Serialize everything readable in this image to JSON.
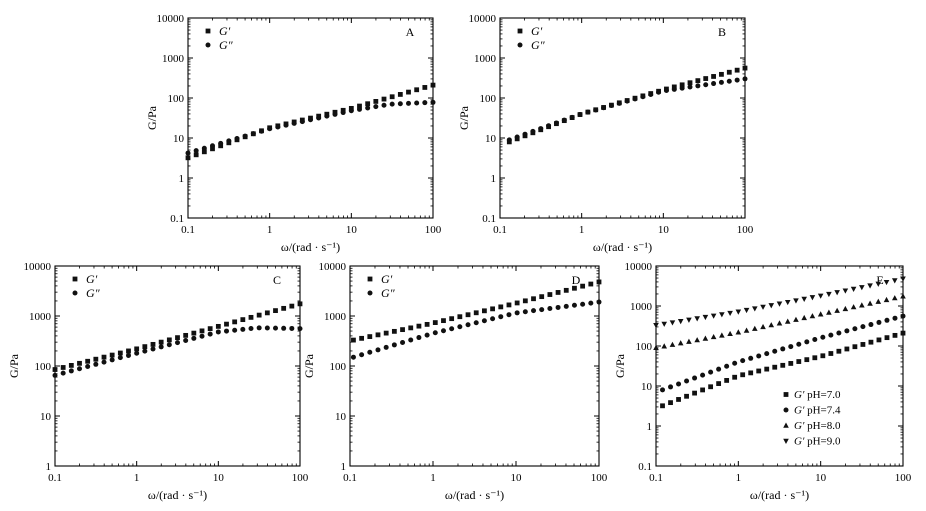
{
  "chart_data": [
    {
      "panel": "A",
      "type": "scatter",
      "xscale": "log",
      "yscale": "log",
      "xlim": [
        0.1,
        100
      ],
      "ylim": [
        0.1,
        10000
      ],
      "x_ticks": [
        "0.1",
        "1",
        "10",
        "100"
      ],
      "y_ticks": [
        "0.1",
        "1",
        "10",
        "100",
        "1000",
        "10000"
      ],
      "xlabel": "ω/(rad · s⁻¹)",
      "ylabel": "G/Pa",
      "series": [
        {
          "name": "G′",
          "marker": "square",
          "curve": [
            [
              0.1,
              3.2
            ],
            [
              1,
              18
            ],
            [
              10,
              55
            ],
            [
              100,
              210
            ]
          ]
        },
        {
          "name": "G″",
          "marker": "circle",
          "curve": [
            [
              0.1,
              4.2
            ],
            [
              1,
              17
            ],
            [
              10,
              48
            ],
            [
              30,
              70
            ],
            [
              100,
              78
            ]
          ]
        }
      ]
    },
    {
      "panel": "B",
      "type": "scatter",
      "xscale": "log",
      "yscale": "log",
      "xlim": [
        0.1,
        100
      ],
      "ylim": [
        0.1,
        10000
      ],
      "x_ticks": [
        "0.1",
        "1",
        "10",
        "100"
      ],
      "y_ticks": [
        "0.1",
        "1",
        "10",
        "100",
        "1000",
        "10000"
      ],
      "xlabel": "ω/(rad · s⁻¹)",
      "ylabel": "G/Pa",
      "series": [
        {
          "name": "G′",
          "marker": "square",
          "curve": [
            [
              0.13,
              8
            ],
            [
              1,
              40
            ],
            [
              10,
              160
            ],
            [
              100,
              560
            ]
          ]
        },
        {
          "name": "G″",
          "marker": "circle",
          "curve": [
            [
              0.13,
              9
            ],
            [
              1,
              40
            ],
            [
              10,
              150
            ],
            [
              100,
              300
            ]
          ]
        }
      ]
    },
    {
      "panel": "C",
      "type": "scatter",
      "xscale": "log",
      "yscale": "log",
      "xlim": [
        0.1,
        100
      ],
      "ylim": [
        1,
        10000
      ],
      "x_ticks": [
        "0.1",
        "1",
        "10",
        "100"
      ],
      "y_ticks": [
        "1",
        "10",
        "100",
        "1000",
        "10000"
      ],
      "xlabel": "ω/(rad · s⁻¹)",
      "ylabel": "G/Pa",
      "series": [
        {
          "name": "G′",
          "marker": "square",
          "curve": [
            [
              0.1,
              85
            ],
            [
              1,
              220
            ],
            [
              10,
              620
            ],
            [
              100,
              1750
            ]
          ]
        },
        {
          "name": "G″",
          "marker": "circle",
          "curve": [
            [
              0.1,
              65
            ],
            [
              1,
              180
            ],
            [
              10,
              480
            ],
            [
              30,
              580
            ],
            [
              100,
              560
            ]
          ]
        }
      ]
    },
    {
      "panel": "D",
      "type": "scatter",
      "xscale": "log",
      "yscale": "log",
      "xlim": [
        0.1,
        100
      ],
      "ylim": [
        1,
        10000
      ],
      "x_ticks": [
        "0.1",
        "1",
        "10",
        "100"
      ],
      "y_ticks": [
        "1",
        "10",
        "100",
        "1000",
        "10000"
      ],
      "xlabel": "ω/(rad · s⁻¹)",
      "ylabel": "G/Pa",
      "series": [
        {
          "name": "G′",
          "marker": "square",
          "curve": [
            [
              0.11,
              330
            ],
            [
              1,
              720
            ],
            [
              10,
              1800
            ],
            [
              100,
              4800
            ]
          ]
        },
        {
          "name": "G″",
          "marker": "circle",
          "curve": [
            [
              0.11,
              150
            ],
            [
              1,
              450
            ],
            [
              10,
              1150
            ],
            [
              100,
              1900
            ]
          ]
        }
      ]
    },
    {
      "panel": "E",
      "type": "scatter",
      "xscale": "log",
      "yscale": "log",
      "xlim": [
        0.1,
        100
      ],
      "ylim": [
        0.1,
        10000
      ],
      "x_ticks": [
        "0.1",
        "1",
        "10",
        "100"
      ],
      "y_ticks": [
        "0.1",
        "1",
        "10",
        "100",
        "1000",
        "10000"
      ],
      "xlabel": "ω/(rad · s⁻¹)",
      "ylabel": "G/Pa",
      "legend_position": "bottom-right",
      "series": [
        {
          "name": "G′",
          "label": "pH=7.0",
          "marker": "square",
          "curve": [
            [
              0.12,
              3.2
            ],
            [
              1,
              18
            ],
            [
              10,
              55
            ],
            [
              100,
              210
            ]
          ]
        },
        {
          "name": "G′",
          "label": "pH=7.4",
          "marker": "circle",
          "curve": [
            [
              0.12,
              8
            ],
            [
              1,
              40
            ],
            [
              10,
              160
            ],
            [
              100,
              560
            ]
          ]
        },
        {
          "name": "G′",
          "label": "pH=8.0",
          "marker": "triangle-up",
          "curve": [
            [
              0.1,
              90
            ],
            [
              1,
              220
            ],
            [
              10,
              620
            ],
            [
              100,
              1750
            ]
          ]
        },
        {
          "name": "G′",
          "label": "pH=9.0",
          "marker": "triangle-down",
          "curve": [
            [
              0.1,
              330
            ],
            [
              1,
              720
            ],
            [
              10,
              1800
            ],
            [
              100,
              4800
            ]
          ]
        }
      ]
    }
  ]
}
